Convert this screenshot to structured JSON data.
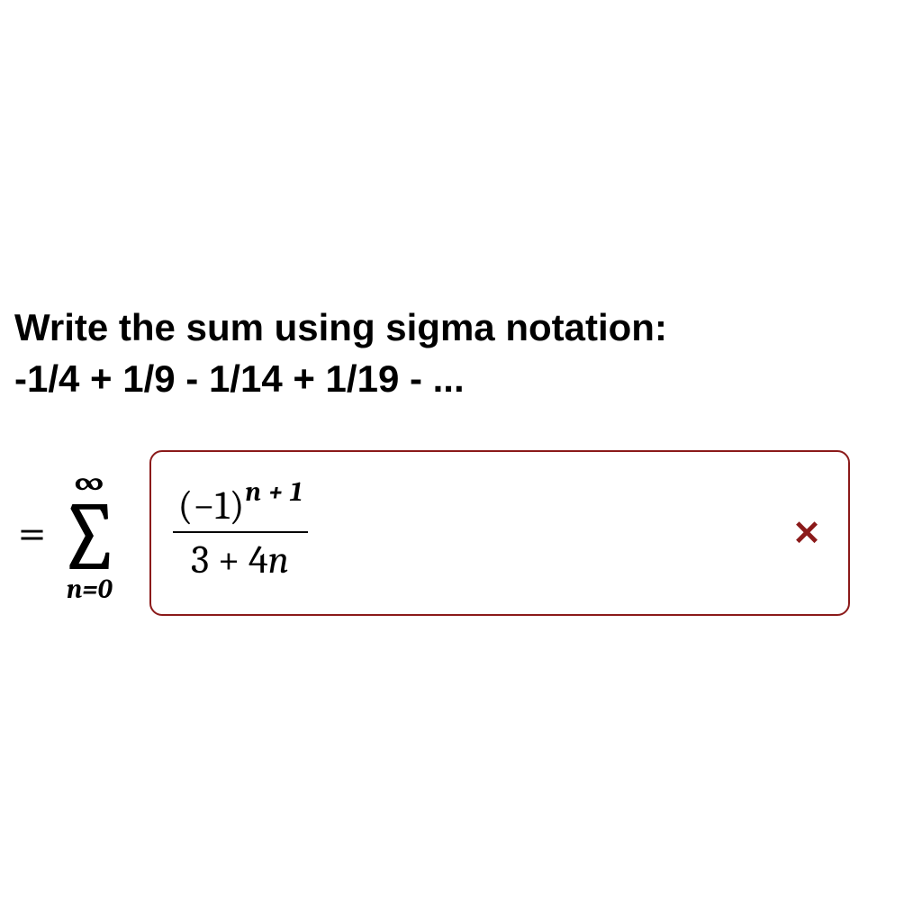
{
  "question": {
    "line1": "Write the sum using sigma notation:",
    "line2": "-1/4 + 1/9 - 1/14 + 1/19 - ..."
  },
  "expression": {
    "equals": "=",
    "sigma": {
      "upper": "∞",
      "symbol": "∑",
      "lower_var": "n",
      "lower_eq": "=",
      "lower_val": "0"
    },
    "answer": {
      "numerator_base": "(−1)",
      "numerator_exp": "n + 1",
      "denominator_left": "3 + 4",
      "denominator_var": "n"
    }
  },
  "feedback": {
    "mark": "✕",
    "mark_color": "#8b1a1a",
    "border_color": "#8b1a1a"
  },
  "style": {
    "question_fontsize": 42,
    "question_color": "#000000",
    "background": "#ffffff"
  }
}
